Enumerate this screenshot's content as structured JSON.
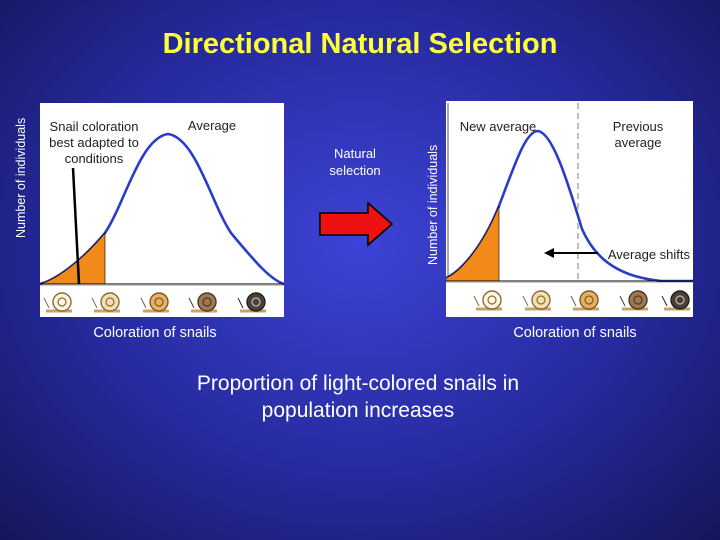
{
  "title": "Directional Natural Selection",
  "left_panel": {
    "y_axis_label": "Number of individuals",
    "x_axis_label": "Coloration of snails",
    "annotation_best_adapted": "Snail coloration best adapted to conditions",
    "annotation_average": "Average"
  },
  "arrow": {
    "label": "Natural selection",
    "color": "#ee1111"
  },
  "right_panel": {
    "y_axis_label": "Number of individuals",
    "x_axis_label": "Coloration of snails",
    "annotation_new_average": "New average",
    "annotation_previous_average": "Previous average",
    "annotation_average_shifts": "Average shifts"
  },
  "conclusion": "Proportion of light-colored snails in population increases",
  "colors": {
    "title": "#ffff3a",
    "curve": "#2a3cc8",
    "shaded_tail": "#f28a1a",
    "background": "#262a9e"
  },
  "icons": {
    "snail": "snail-icon",
    "arrow": "right-arrow-icon"
  }
}
